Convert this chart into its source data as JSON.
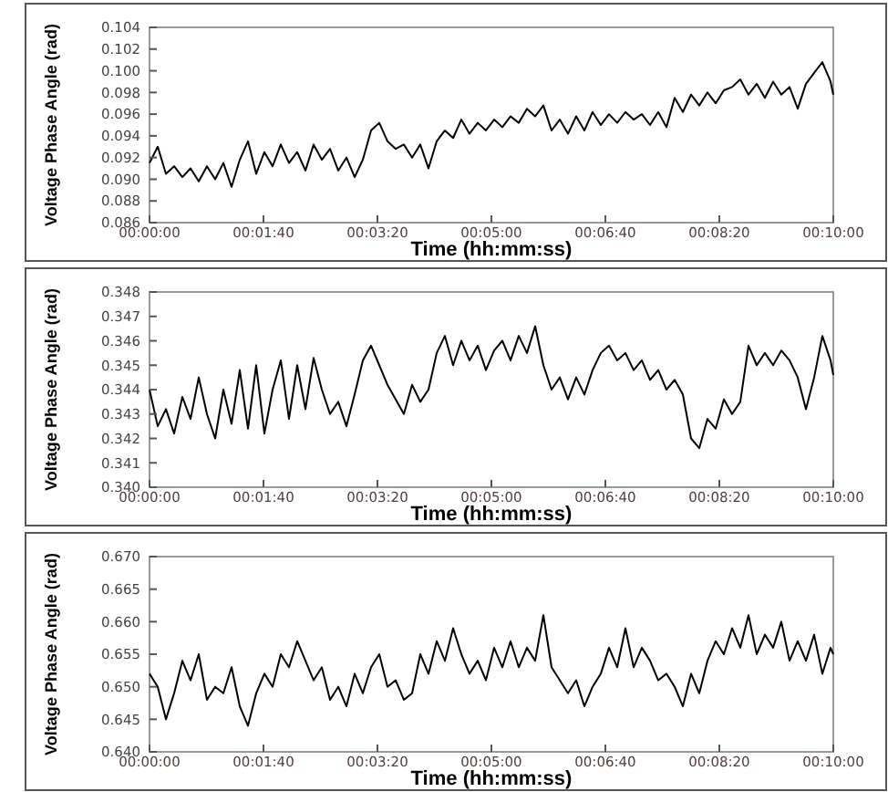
{
  "chart_data": [
    {
      "type": "line",
      "xlabel": "Time (hh:mm:ss)",
      "ylabel": "Voltage Phase Angle (rad)",
      "grid": false,
      "x": [
        0,
        0.002,
        0.004,
        0.006,
        0.008,
        0.01,
        0.012,
        0.014,
        0.016,
        0.018,
        0.02,
        0.022,
        0.024,
        0.026,
        0.028,
        0.03,
        0.032,
        0.034,
        0.036,
        0.038,
        0.04,
        0.042,
        0.044,
        0.046,
        0.048,
        0.05,
        0.052,
        0.054,
        0.056,
        0.058,
        0.06,
        0.062,
        0.064,
        0.066,
        0.068,
        0.07,
        0.072,
        0.074,
        0.076,
        0.078,
        0.08,
        0.082,
        0.084,
        0.086,
        0.088,
        0.09,
        0.092,
        0.094,
        0.096,
        0.098,
        0.1,
        0.102,
        0.104,
        0.106,
        0.108,
        0.11,
        0.112,
        0.114,
        0.116,
        0.118,
        0.12,
        0.122,
        0.124,
        0.126,
        0.128,
        0.13,
        0.132,
        0.134,
        0.136,
        0.138,
        0.14,
        0.142,
        0.144,
        0.146,
        0.148,
        0.15,
        0.152,
        0.154,
        0.156,
        0.158,
        0.16,
        0.162,
        0.164,
        0.166,
        0.16667
      ],
      "xlim": [
        0,
        0.16667
      ],
      "xticks": [
        {
          "value": 0,
          "label": "00:00:00"
        },
        {
          "value": 0.02778,
          "label": "00:01:40"
        },
        {
          "value": 0.05556,
          "label": "00:03:20"
        },
        {
          "value": 0.08333,
          "label": "00:05:00"
        },
        {
          "value": 0.11111,
          "label": "00:06:40"
        },
        {
          "value": 0.13889,
          "label": "00:08:20"
        },
        {
          "value": 0.16667,
          "label": "00:10:00"
        }
      ],
      "ylim": [
        0.086,
        0.104
      ],
      "yticks": [
        0.086,
        0.088,
        {
          "value": 0.09,
          "label": "0.090"
        },
        0.092,
        0.094,
        0.096,
        0.098,
        {
          "value": 0.1,
          "label": "0.100"
        },
        0.102,
        0.104
      ],
      "series": [
        {
          "color": "#000000",
          "values": [
            0.0915,
            0.093,
            0.0905,
            0.0912,
            0.0902,
            0.091,
            0.0898,
            0.0912,
            0.09,
            0.0915,
            0.0893,
            0.0918,
            0.0935,
            0.0905,
            0.0925,
            0.0912,
            0.0932,
            0.0915,
            0.0925,
            0.0908,
            0.0932,
            0.0918,
            0.0928,
            0.0908,
            0.092,
            0.0902,
            0.0918,
            0.0945,
            0.0952,
            0.0935,
            0.0928,
            0.0932,
            0.092,
            0.0932,
            0.091,
            0.0935,
            0.0945,
            0.0938,
            0.0955,
            0.0942,
            0.0952,
            0.0945,
            0.0955,
            0.0948,
            0.0958,
            0.0952,
            0.0965,
            0.0958,
            0.0968,
            0.0945,
            0.0955,
            0.0942,
            0.0958,
            0.0945,
            0.0962,
            0.095,
            0.096,
            0.0952,
            0.0962,
            0.0955,
            0.096,
            0.095,
            0.0962,
            0.0948,
            0.0975,
            0.0962,
            0.0978,
            0.0968,
            0.098,
            0.097,
            0.0982,
            0.0985,
            0.0992,
            0.0978,
            0.0988,
            0.0975,
            0.099,
            0.0978,
            0.0985,
            0.0965,
            0.0988,
            0.0998,
            0.1008,
            0.099,
            0.0978
          ]
        }
      ]
    },
    {
      "type": "line",
      "xlabel": "Time (hh:mm:ss)",
      "ylabel": "Voltage Phase Angle (rad)",
      "grid": false,
      "x": [
        0,
        0.002,
        0.004,
        0.006,
        0.008,
        0.01,
        0.012,
        0.014,
        0.016,
        0.018,
        0.02,
        0.022,
        0.024,
        0.026,
        0.028,
        0.03,
        0.032,
        0.034,
        0.036,
        0.038,
        0.04,
        0.042,
        0.044,
        0.046,
        0.048,
        0.05,
        0.052,
        0.054,
        0.056,
        0.058,
        0.06,
        0.062,
        0.064,
        0.066,
        0.068,
        0.07,
        0.072,
        0.074,
        0.076,
        0.078,
        0.08,
        0.082,
        0.084,
        0.086,
        0.088,
        0.09,
        0.092,
        0.094,
        0.096,
        0.098,
        0.1,
        0.102,
        0.104,
        0.106,
        0.108,
        0.11,
        0.112,
        0.114,
        0.116,
        0.118,
        0.12,
        0.122,
        0.124,
        0.126,
        0.128,
        0.13,
        0.132,
        0.134,
        0.136,
        0.138,
        0.14,
        0.142,
        0.144,
        0.146,
        0.148,
        0.15,
        0.152,
        0.154,
        0.156,
        0.158,
        0.16,
        0.162,
        0.164,
        0.166,
        0.16667
      ],
      "xlim": [
        0,
        0.16667
      ],
      "xticks": [
        {
          "value": 0,
          "label": "00:00:00"
        },
        {
          "value": 0.02778,
          "label": "00:01:40"
        },
        {
          "value": 0.05556,
          "label": "00:03:20"
        },
        {
          "value": 0.08333,
          "label": "00:05:00"
        },
        {
          "value": 0.11111,
          "label": "00:06:40"
        },
        {
          "value": 0.13889,
          "label": "00:08:20"
        },
        {
          "value": 0.16667,
          "label": "00:10:00"
        }
      ],
      "ylim": [
        0.34,
        0.348
      ],
      "yticks": [
        {
          "value": 0.34,
          "label": "0.340"
        },
        0.341,
        0.342,
        0.343,
        0.344,
        0.345,
        0.346,
        0.347,
        0.348
      ],
      "series": [
        {
          "color": "#000000",
          "values": [
            0.344,
            0.3425,
            0.3432,
            0.3422,
            0.3437,
            0.3428,
            0.3445,
            0.343,
            0.342,
            0.344,
            0.3426,
            0.3448,
            0.3424,
            0.345,
            0.3422,
            0.344,
            0.3452,
            0.3428,
            0.345,
            0.3432,
            0.3453,
            0.344,
            0.343,
            0.3435,
            0.3425,
            0.3438,
            0.3452,
            0.3458,
            0.345,
            0.3442,
            0.3436,
            0.343,
            0.3442,
            0.3435,
            0.344,
            0.3455,
            0.3462,
            0.345,
            0.346,
            0.3452,
            0.3458,
            0.3448,
            0.3456,
            0.346,
            0.3452,
            0.3462,
            0.3455,
            0.3466,
            0.345,
            0.344,
            0.3445,
            0.3436,
            0.3445,
            0.3438,
            0.3448,
            0.3455,
            0.3458,
            0.3452,
            0.3455,
            0.3448,
            0.3452,
            0.3444,
            0.3448,
            0.344,
            0.3444,
            0.3438,
            0.342,
            0.3416,
            0.3428,
            0.3424,
            0.3436,
            0.343,
            0.3435,
            0.3458,
            0.345,
            0.3455,
            0.345,
            0.3456,
            0.3452,
            0.3445,
            0.3432,
            0.3445,
            0.3462,
            0.3452,
            0.3446
          ]
        }
      ]
    },
    {
      "type": "line",
      "xlabel": "Time (hh:mm:ss)",
      "ylabel": "Voltage Phase Angle (rad)",
      "grid": false,
      "x": [
        0,
        0.002,
        0.004,
        0.006,
        0.008,
        0.01,
        0.012,
        0.014,
        0.016,
        0.018,
        0.02,
        0.022,
        0.024,
        0.026,
        0.028,
        0.03,
        0.032,
        0.034,
        0.036,
        0.038,
        0.04,
        0.042,
        0.044,
        0.046,
        0.048,
        0.05,
        0.052,
        0.054,
        0.056,
        0.058,
        0.06,
        0.062,
        0.064,
        0.066,
        0.068,
        0.07,
        0.072,
        0.074,
        0.076,
        0.078,
        0.08,
        0.082,
        0.084,
        0.086,
        0.088,
        0.09,
        0.092,
        0.094,
        0.096,
        0.098,
        0.1,
        0.102,
        0.104,
        0.106,
        0.108,
        0.11,
        0.112,
        0.114,
        0.116,
        0.118,
        0.12,
        0.122,
        0.124,
        0.126,
        0.128,
        0.13,
        0.132,
        0.134,
        0.136,
        0.138,
        0.14,
        0.142,
        0.144,
        0.146,
        0.148,
        0.15,
        0.152,
        0.154,
        0.156,
        0.158,
        0.16,
        0.162,
        0.164,
        0.166,
        0.16667
      ],
      "xlim": [
        0,
        0.16667
      ],
      "xticks": [
        {
          "value": 0,
          "label": "00:00:00"
        },
        {
          "value": 0.02778,
          "label": "00:01:40"
        },
        {
          "value": 0.05556,
          "label": "00:03:20"
        },
        {
          "value": 0.08333,
          "label": "00:05:00"
        },
        {
          "value": 0.11111,
          "label": "00:06:40"
        },
        {
          "value": 0.13889,
          "label": "00:08:20"
        },
        {
          "value": 0.16667,
          "label": "00:10:00"
        }
      ],
      "ylim": [
        0.64,
        0.67
      ],
      "yticks": [
        {
          "value": 0.64,
          "label": "0.640"
        },
        0.645,
        {
          "value": 0.65,
          "label": "0.650"
        },
        0.655,
        {
          "value": 0.66,
          "label": "0.660"
        },
        0.665,
        {
          "value": 0.67,
          "label": "0.670"
        }
      ],
      "series": [
        {
          "color": "#000000",
          "values": [
            0.652,
            0.65,
            0.645,
            0.649,
            0.654,
            0.651,
            0.655,
            0.648,
            0.65,
            0.649,
            0.653,
            0.647,
            0.644,
            0.649,
            0.652,
            0.65,
            0.655,
            0.653,
            0.657,
            0.654,
            0.651,
            0.653,
            0.648,
            0.65,
            0.647,
            0.652,
            0.649,
            0.653,
            0.655,
            0.65,
            0.651,
            0.648,
            0.649,
            0.655,
            0.652,
            0.657,
            0.654,
            0.659,
            0.655,
            0.652,
            0.654,
            0.651,
            0.656,
            0.653,
            0.657,
            0.653,
            0.656,
            0.654,
            0.661,
            0.653,
            0.651,
            0.649,
            0.651,
            0.647,
            0.65,
            0.652,
            0.656,
            0.653,
            0.659,
            0.653,
            0.656,
            0.654,
            0.651,
            0.652,
            0.65,
            0.647,
            0.652,
            0.649,
            0.654,
            0.657,
            0.655,
            0.659,
            0.656,
            0.661,
            0.655,
            0.658,
            0.656,
            0.66,
            0.654,
            0.657,
            0.654,
            0.658,
            0.652,
            0.656,
            0.655
          ]
        }
      ]
    }
  ]
}
